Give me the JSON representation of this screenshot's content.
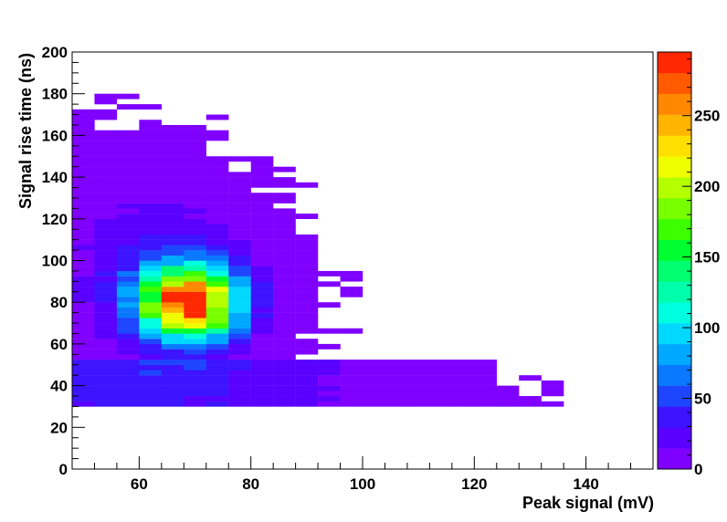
{
  "chart_data": {
    "type": "heatmap",
    "title": "",
    "xlabel": "Peak signal (mV)",
    "ylabel": "Signal rise time (ns)",
    "xlim": [
      48,
      152
    ],
    "ylim": [
      0,
      200
    ],
    "x_bin_width": 4,
    "y_bin_width": 2.5,
    "x_ticks": [
      "60",
      "80",
      "100",
      "120",
      "140"
    ],
    "x_tick_values": [
      60,
      80,
      100,
      120,
      140
    ],
    "y_ticks": [
      "0",
      "20",
      "40",
      "60",
      "80",
      "100",
      "120",
      "140",
      "160",
      "180",
      "200"
    ],
    "y_tick_values": [
      0,
      20,
      40,
      60,
      80,
      100,
      120,
      140,
      160,
      180,
      200
    ],
    "colorbar": {
      "ticks": [
        "0",
        "50",
        "100",
        "150",
        "200",
        "250"
      ],
      "tick_values": [
        0,
        50,
        100,
        150,
        200,
        250
      ],
      "range": [
        0,
        295
      ],
      "palette": [
        "#7f00ff",
        "#5a00ff",
        "#3c14ff",
        "#1e46ff",
        "#0a78ff",
        "#00a8ff",
        "#00d8ff",
        "#00ffe0",
        "#00ffaa",
        "#00ff70",
        "#00ff30",
        "#3cff00",
        "#78ff00",
        "#b4ff00",
        "#f0ff00",
        "#ffe000",
        "#ffb400",
        "#ff8800",
        "#ff5a00",
        "#ff2800"
      ]
    },
    "hotspot": {
      "x_center": 69,
      "y_center": 80,
      "peak": 290
    }
  }
}
